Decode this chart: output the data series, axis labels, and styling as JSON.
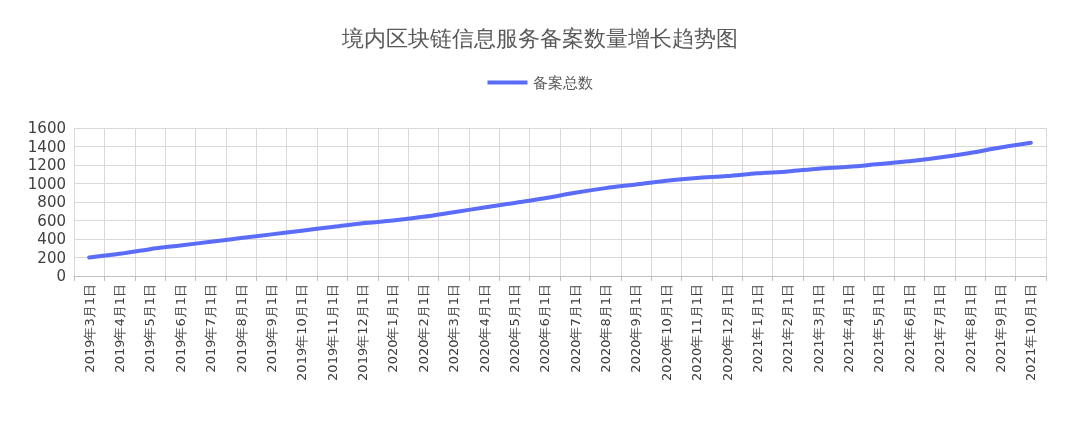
{
  "chart_data": {
    "type": "line",
    "title": "境内区块链信息服务备案数量增长趋势图",
    "categories": [
      "2019年3月1日",
      "2019年4月1日",
      "2019年5月1日",
      "2019年6月1日",
      "2019年7月1日",
      "2019年8月1日",
      "2019年9月1日",
      "2019年10月1日",
      "2019年11月1日",
      "2019年12月1日",
      "2020年1月1日",
      "2020年2月1日",
      "2020年3月1日",
      "2020年4月1日",
      "2020年5月1日",
      "2020年6月1日",
      "2020年7月1日",
      "2020年8月1日",
      "2020年9月1日",
      "2020年10月1日",
      "2020年11月1日",
      "2020年12月1日",
      "2021年1月1日",
      "2021年2月1日",
      "2021年3月1日",
      "2021年4月1日",
      "2021年5月1日",
      "2021年6月1日",
      "2021年7月1日",
      "2021年8月1日",
      "2021年9月1日",
      "2021年10月1日"
    ],
    "series": [
      {
        "name": "备案总数",
        "color": "#5b6cf9",
        "values": [
          200,
          240,
          290,
          330,
          370,
          410,
          450,
          490,
          530,
          570,
          600,
          640,
          690,
          740,
          790,
          840,
          900,
          950,
          990,
          1030,
          1060,
          1080,
          1110,
          1130,
          1160,
          1180,
          1210,
          1240,
          1280,
          1330,
          1390,
          1440
        ]
      }
    ],
    "ylim": [
      0,
      1600
    ],
    "yticks": [
      0,
      200,
      400,
      600,
      800,
      1000,
      1200,
      1400,
      1600
    ],
    "grid": true,
    "legend": "top",
    "marker": "none",
    "line_style": "solid"
  }
}
